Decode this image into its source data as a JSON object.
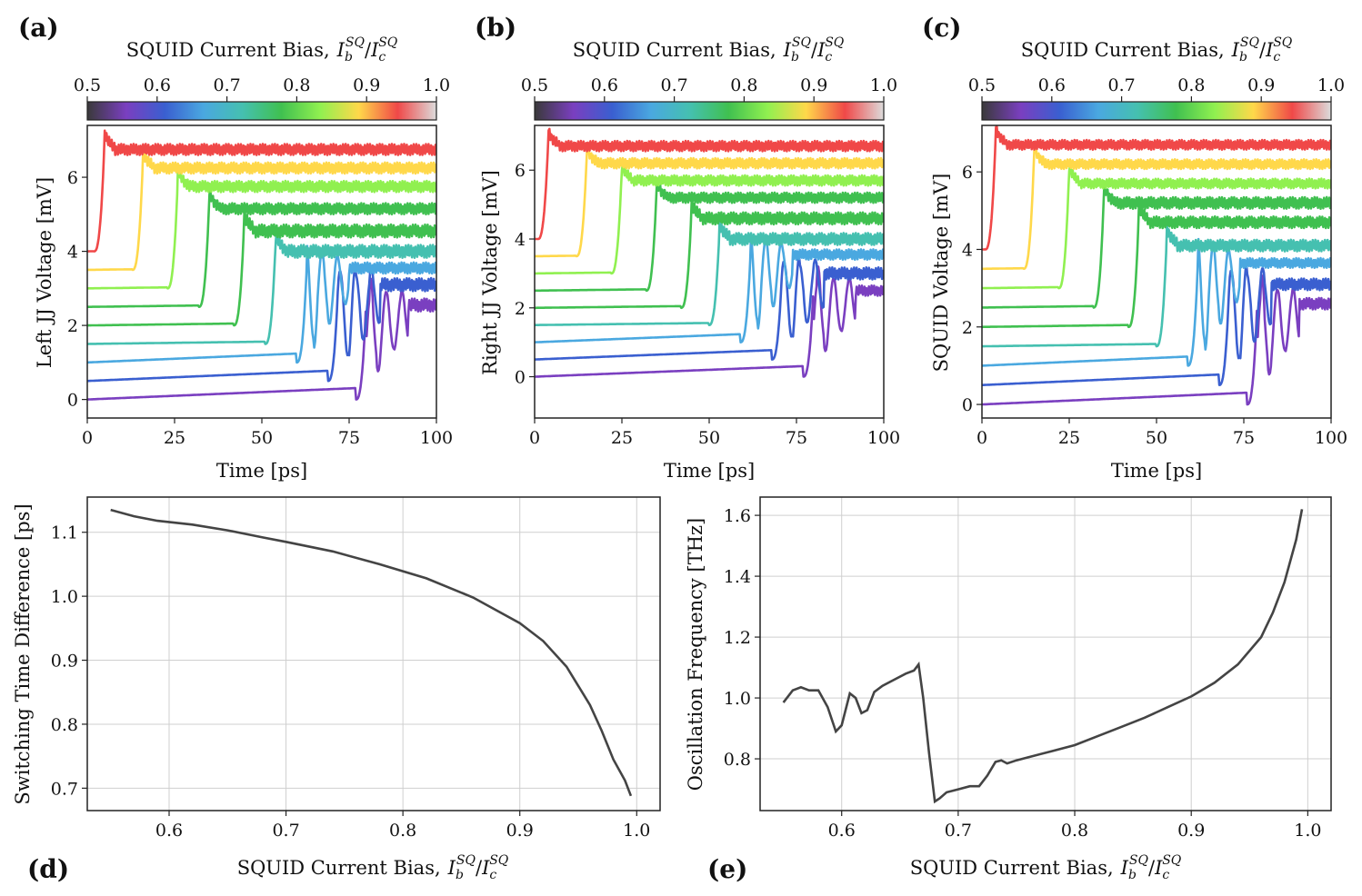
{
  "figure": {
    "colormap": [
      "#3a3a3a",
      "#7a3fc0",
      "#3a5fd0",
      "#4aa8e0",
      "#45c0b0",
      "#40c050",
      "#90f050",
      "#ffd84a",
      "#f04848",
      "#dcdcdc"
    ]
  },
  "chart_data": [
    {
      "id": "a",
      "panel_label": "(a)",
      "type": "line",
      "colorbar": {
        "title": "SQUID Current Bias, I_b^SQ / I_c^SQ",
        "title_text": "SQUID Current Bias,",
        "title_math_base1": "I",
        "title_math_sub1": "b",
        "title_math_sup1": "SQ",
        "title_math_sep": "/",
        "title_math_base2": "I",
        "title_math_sub2": "c",
        "title_math_sup2": "SQ",
        "range": [
          0.5,
          1.0
        ],
        "ticks": [
          "0.5",
          "0.6",
          "0.7",
          "0.8",
          "0.9",
          "1.0"
        ]
      },
      "xlabel": "Time [ps]",
      "ylabel": "Left JJ Voltage [mV]",
      "xlim": [
        0,
        100
      ],
      "ylim": [
        -0.5,
        7.4
      ],
      "xticks": [
        "0",
        "25",
        "50",
        "75",
        "100"
      ],
      "yticks": [
        "0",
        "2",
        "4",
        "6"
      ],
      "series": [
        {
          "bias": 0.55,
          "offset": 0.0,
          "t_switch": 80,
          "v_high": 2.55,
          "band": 0.35
        },
        {
          "bias": 0.6,
          "offset": 0.5,
          "t_switch": 72,
          "v_high": 3.1,
          "band": 0.35
        },
        {
          "bias": 0.65,
          "offset": 1.0,
          "t_switch": 63,
          "v_high": 3.55,
          "band": 0.3
        },
        {
          "bias": 0.7,
          "offset": 1.5,
          "t_switch": 54,
          "v_high": 4.0,
          "band": 0.35
        },
        {
          "bias": 0.75,
          "offset": 2.0,
          "t_switch": 45,
          "v_high": 4.55,
          "band": 0.35
        },
        {
          "bias": 0.8,
          "offset": 2.5,
          "t_switch": 35,
          "v_high": 5.15,
          "band": 0.3
        },
        {
          "bias": 0.85,
          "offset": 3.0,
          "t_switch": 26,
          "v_high": 5.75,
          "band": 0.3
        },
        {
          "bias": 0.9,
          "offset": 3.5,
          "t_switch": 16,
          "v_high": 6.25,
          "band": 0.3
        },
        {
          "bias": 0.95,
          "offset": 4.0,
          "t_switch": 5,
          "v_high": 6.75,
          "band": 0.3
        }
      ]
    },
    {
      "id": "b",
      "panel_label": "(b)",
      "type": "line",
      "colorbar": {
        "title": "SQUID Current Bias, I_b^SQ / I_c^SQ",
        "title_text": "SQUID Current Bias,",
        "title_math_base1": "I",
        "title_math_sub1": "b",
        "title_math_sup1": "SQ",
        "title_math_sep": "/",
        "title_math_base2": "I",
        "title_math_sub2": "c",
        "title_math_sup2": "SQ",
        "range": [
          0.5,
          1.0
        ],
        "ticks": [
          "0.5",
          "0.6",
          "0.7",
          "0.8",
          "0.9",
          "1.0"
        ]
      },
      "xlabel": "Time [ps]",
      "ylabel": "Right JJ Voltage [mV]",
      "xlim": [
        0,
        100
      ],
      "ylim": [
        -1.2,
        7.3
      ],
      "xticks": [
        "0",
        "25",
        "50",
        "75",
        "100"
      ],
      "yticks": [
        "0",
        "2",
        "4",
        "6"
      ],
      "series": [
        {
          "bias": 0.55,
          "offset": 0.0,
          "t_switch": 80,
          "v_high": 2.5,
          "band": 0.3
        },
        {
          "bias": 0.6,
          "offset": 0.5,
          "t_switch": 71,
          "v_high": 3.0,
          "band": 0.35
        },
        {
          "bias": 0.65,
          "offset": 1.0,
          "t_switch": 62,
          "v_high": 3.55,
          "band": 0.3
        },
        {
          "bias": 0.7,
          "offset": 1.5,
          "t_switch": 53,
          "v_high": 4.0,
          "band": 0.35
        },
        {
          "bias": 0.75,
          "offset": 2.0,
          "t_switch": 45,
          "v_high": 4.6,
          "band": 0.35
        },
        {
          "bias": 0.8,
          "offset": 2.5,
          "t_switch": 35,
          "v_high": 5.2,
          "band": 0.3
        },
        {
          "bias": 0.85,
          "offset": 3.0,
          "t_switch": 25,
          "v_high": 5.7,
          "band": 0.3
        },
        {
          "bias": 0.9,
          "offset": 3.5,
          "t_switch": 15,
          "v_high": 6.2,
          "band": 0.3
        },
        {
          "bias": 0.95,
          "offset": 4.0,
          "t_switch": 4,
          "v_high": 6.7,
          "band": 0.3
        }
      ]
    },
    {
      "id": "c",
      "panel_label": "(c)",
      "type": "line",
      "colorbar": {
        "title": "SQUID Current Bias, I_b^SQ / I_c^SQ",
        "title_text": "SQUID Current Bias,",
        "title_math_base1": "I",
        "title_math_sub1": "b",
        "title_math_sup1": "SQ",
        "title_math_sep": "/",
        "title_math_base2": "I",
        "title_math_sub2": "c",
        "title_math_sup2": "SQ",
        "range": [
          0.5,
          1.0
        ],
        "ticks": [
          "0.5",
          "0.6",
          "0.7",
          "0.8",
          "0.9",
          "1.0"
        ]
      },
      "xlabel": "Time [ps]",
      "ylabel": "SQUID Voltage [mV]",
      "xlim": [
        0,
        100
      ],
      "ylim": [
        -0.35,
        7.2
      ],
      "xticks": [
        "0",
        "25",
        "50",
        "75",
        "100"
      ],
      "yticks": [
        "0",
        "2",
        "4",
        "6"
      ],
      "series": [
        {
          "bias": 0.55,
          "offset": 0.0,
          "t_switch": 79,
          "v_high": 2.6,
          "band": 0.3
        },
        {
          "bias": 0.6,
          "offset": 0.5,
          "t_switch": 71,
          "v_high": 3.1,
          "band": 0.3
        },
        {
          "bias": 0.65,
          "offset": 1.0,
          "t_switch": 62,
          "v_high": 3.65,
          "band": 0.25
        },
        {
          "bias": 0.7,
          "offset": 1.5,
          "t_switch": 53,
          "v_high": 4.1,
          "band": 0.3
        },
        {
          "bias": 0.75,
          "offset": 2.0,
          "t_switch": 45,
          "v_high": 4.7,
          "band": 0.3
        },
        {
          "bias": 0.8,
          "offset": 2.5,
          "t_switch": 35,
          "v_high": 5.2,
          "band": 0.3
        },
        {
          "bias": 0.85,
          "offset": 3.0,
          "t_switch": 25,
          "v_high": 5.7,
          "band": 0.25
        },
        {
          "bias": 0.9,
          "offset": 3.5,
          "t_switch": 15,
          "v_high": 6.2,
          "band": 0.25
        },
        {
          "bias": 0.95,
          "offset": 4.0,
          "t_switch": 4,
          "v_high": 6.7,
          "band": 0.25
        }
      ]
    },
    {
      "id": "d",
      "panel_label": "(d)",
      "type": "line",
      "xlabel_text": "SQUID Current Bias,",
      "xlabel": "SQUID Current Bias, I_b^SQ / I_c^SQ",
      "xlabel_math_base1": "I",
      "xlabel_math_sub1": "b",
      "xlabel_math_sup1": "SQ",
      "xlabel_math_sep": "/",
      "xlabel_math_base2": "I",
      "xlabel_math_sub2": "c",
      "xlabel_math_sup2": "SQ",
      "ylabel": "Switching Time Difference [ps]",
      "xlim": [
        0.53,
        1.02
      ],
      "ylim": [
        0.665,
        1.155
      ],
      "xticks": [
        "0.6",
        "0.7",
        "0.8",
        "0.9",
        "1.0"
      ],
      "yticks": [
        "0.7",
        "0.8",
        "0.9",
        "1.0",
        "1.1"
      ],
      "x": [
        0.55,
        0.57,
        0.59,
        0.62,
        0.65,
        0.68,
        0.7,
        0.74,
        0.78,
        0.82,
        0.86,
        0.88,
        0.9,
        0.92,
        0.94,
        0.96,
        0.97,
        0.98,
        0.99,
        0.995
      ],
      "y": [
        1.135,
        1.125,
        1.118,
        1.112,
        1.103,
        1.092,
        1.085,
        1.07,
        1.05,
        1.028,
        0.998,
        0.978,
        0.958,
        0.93,
        0.89,
        0.83,
        0.79,
        0.745,
        0.712,
        0.688
      ]
    },
    {
      "id": "e",
      "panel_label": "(e)",
      "type": "line",
      "xlabel_text": "SQUID Current Bias,",
      "xlabel": "SQUID Current Bias, I_b^SQ / I_c^SQ",
      "xlabel_math_base1": "I",
      "xlabel_math_sub1": "b",
      "xlabel_math_sup1": "SQ",
      "xlabel_math_sep": "/",
      "xlabel_math_base2": "I",
      "xlabel_math_sub2": "c",
      "xlabel_math_sup2": "SQ",
      "ylabel": "Oscillation Frequency [THz]",
      "xlim": [
        0.53,
        1.02
      ],
      "ylim": [
        0.63,
        1.66
      ],
      "xticks": [
        "0.6",
        "0.7",
        "0.8",
        "0.9",
        "1.0"
      ],
      "yticks": [
        "0.8",
        "1.0",
        "1.2",
        "1.4",
        "1.6"
      ],
      "x": [
        0.55,
        0.558,
        0.565,
        0.572,
        0.58,
        0.588,
        0.595,
        0.6,
        0.607,
        0.612,
        0.617,
        0.622,
        0.628,
        0.635,
        0.645,
        0.655,
        0.662,
        0.666,
        0.67,
        0.675,
        0.68,
        0.684,
        0.69,
        0.7,
        0.71,
        0.718,
        0.725,
        0.732,
        0.737,
        0.742,
        0.75,
        0.76,
        0.78,
        0.8,
        0.82,
        0.84,
        0.86,
        0.88,
        0.9,
        0.92,
        0.94,
        0.96,
        0.97,
        0.98,
        0.99,
        0.995
      ],
      "y": [
        0.985,
        1.025,
        1.035,
        1.025,
        1.025,
        0.97,
        0.89,
        0.91,
        1.015,
        1.0,
        0.95,
        0.96,
        1.02,
        1.04,
        1.06,
        1.08,
        1.09,
        1.11,
        1.0,
        0.82,
        0.66,
        0.67,
        0.69,
        0.7,
        0.71,
        0.71,
        0.745,
        0.79,
        0.795,
        0.785,
        0.795,
        0.805,
        0.825,
        0.845,
        0.875,
        0.905,
        0.935,
        0.97,
        1.005,
        1.05,
        1.11,
        1.2,
        1.28,
        1.38,
        1.52,
        1.62
      ]
    }
  ]
}
